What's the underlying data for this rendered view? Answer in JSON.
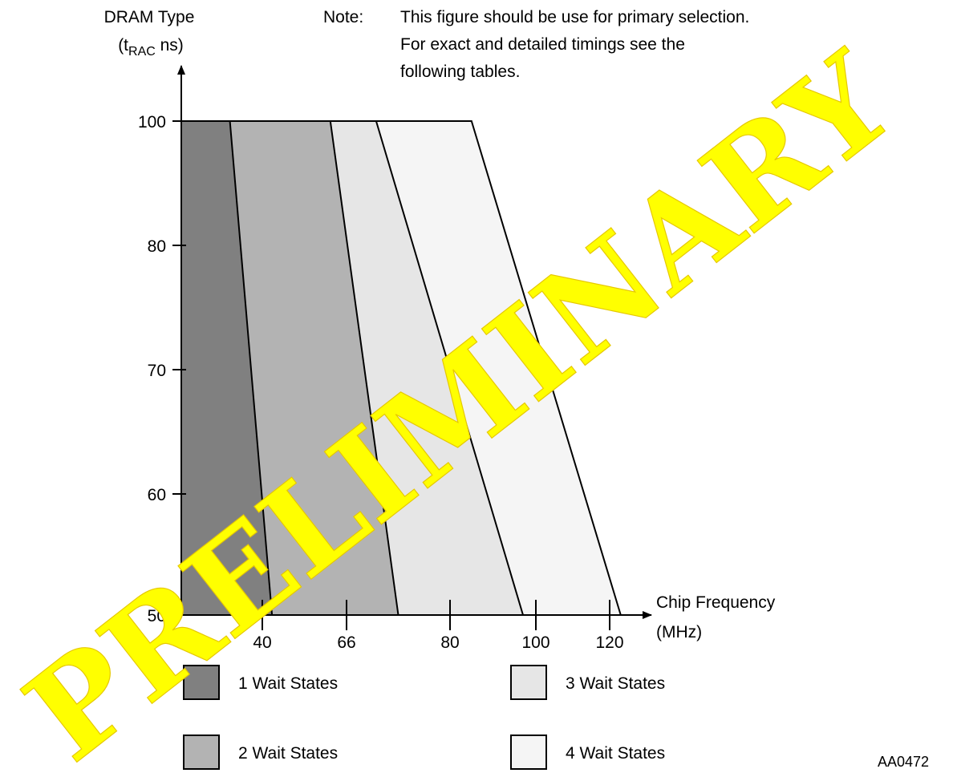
{
  "watermark": "PRELIMINARY",
  "note": {
    "label": "Note:",
    "lines": [
      "This figure should be use for primary selection.",
      "For exact and detailed timings see the",
      "following tables."
    ]
  },
  "figure_id": "AA0472",
  "chart_data": {
    "type": "area",
    "title": "",
    "ylabel": {
      "line1": "DRAM Type",
      "prefix": "(t",
      "subscript": "RAC",
      "suffix": " ns)"
    },
    "xlabel": {
      "line1": "Chip Frequency",
      "line2": "(MHz)"
    },
    "x_ticks": [
      "40",
      "66",
      "80",
      "100",
      "120"
    ],
    "y_ticks": [
      "100",
      "80",
      "70",
      "60",
      "50"
    ],
    "regions": [
      {
        "name": "1 Wait States",
        "color": "#808080",
        "boundary": [
          {
            "t": "100",
            "f": 30
          },
          {
            "t": "50",
            "f": 43
          }
        ]
      },
      {
        "name": "2 Wait States",
        "color": "#b3b3b3",
        "boundary": [
          {
            "t": "100",
            "f": 61
          },
          {
            "t": "50",
            "f": 73
          }
        ]
      },
      {
        "name": "3 Wait States",
        "color": "#e6e6e6",
        "boundary": [
          {
            "t": "100",
            "f": 70
          },
          {
            "t": "50",
            "f": 97
          }
        ]
      },
      {
        "name": "4 Wait States",
        "color": "#f5f5f5",
        "boundary": [
          {
            "t": "100",
            "f": 85
          },
          {
            "t": "50",
            "f": 123
          }
        ]
      }
    ]
  }
}
